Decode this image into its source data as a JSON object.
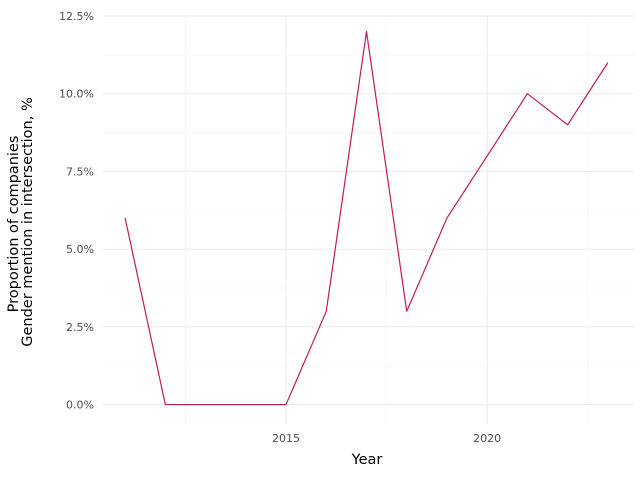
{
  "chart_data": {
    "type": "line",
    "title": "",
    "xlabel": "Year",
    "ylabel_lines": [
      "Proportion of companies",
      "Gender mention in intersection, %"
    ],
    "x_ticks": [
      2015,
      2020
    ],
    "x_tick_labels": [
      "2015",
      "2020"
    ],
    "x_minor_ticks": [
      2012.5,
      2017.5,
      2022.5
    ],
    "xlim": [
      2010.45,
      2023.65
    ],
    "y_ticks": [
      0,
      0.025,
      0.05,
      0.075,
      0.1,
      0.125
    ],
    "y_tick_labels": [
      "0.0%",
      "2.5%",
      "5.0%",
      "7.5%",
      "10.0%",
      "12.5%"
    ],
    "y_minor_ticks": [
      0.0125,
      0.0375,
      0.0625,
      0.0875,
      0.1125
    ],
    "ylim": [
      -0.00625,
      0.125
    ],
    "grid": true,
    "legend": "none",
    "series": [
      {
        "color": "#c2185b",
        "x": [
          2011,
          2012,
          2013,
          2014,
          2015,
          2016,
          2017,
          2018,
          2019,
          2020,
          2021,
          2022,
          2023
        ],
        "y": [
          0.06,
          0.0,
          0.0,
          0.0,
          0.0,
          0.03,
          0.12,
          0.03,
          0.06,
          0.08,
          0.1,
          0.09,
          0.11
        ]
      }
    ]
  }
}
